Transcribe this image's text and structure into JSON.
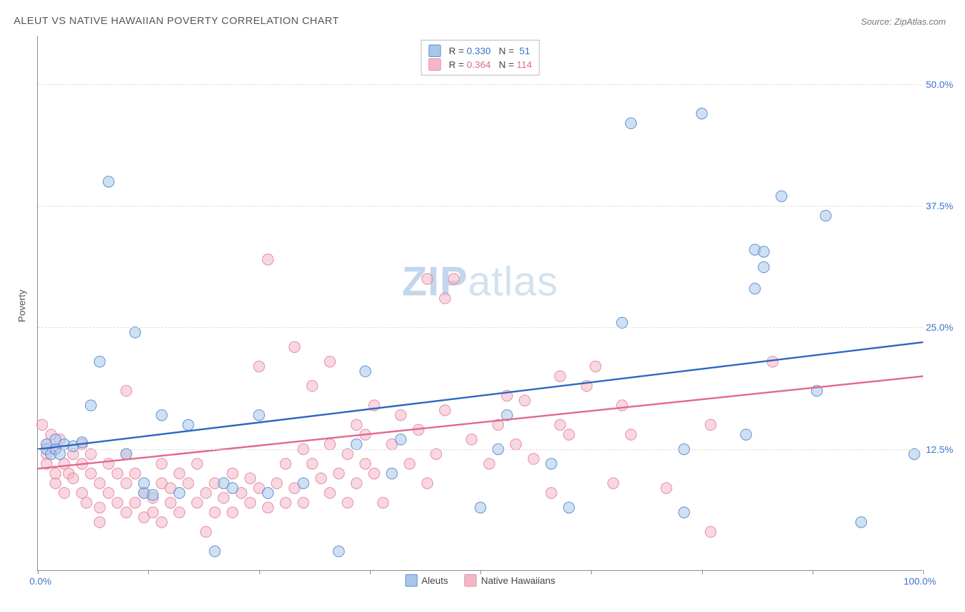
{
  "title": "ALEUT VS NATIVE HAWAIIAN POVERTY CORRELATION CHART",
  "source": "Source: ZipAtlas.com",
  "ylabel": "Poverty",
  "watermark_html": "ZIPatlas",
  "chart": {
    "type": "scatter",
    "xlim": [
      0,
      100
    ],
    "ylim": [
      0,
      55
    ],
    "y_ticks": [
      12.5,
      25.0,
      37.5,
      50.0
    ],
    "y_tick_labels": [
      "12.5%",
      "25.0%",
      "37.5%",
      "50.0%"
    ],
    "x_ticks": [
      0,
      12.5,
      25,
      37.5,
      50,
      62.5,
      75,
      87.5,
      100
    ],
    "x_min_label": "0.0%",
    "x_max_label": "100.0%",
    "background_color": "#ffffff",
    "grid_color": "#dddddd",
    "axis_color": "#888888",
    "tick_label_color": "#3a72c8",
    "marker_radius": 8,
    "marker_opacity": 0.55,
    "line_width": 2.5,
    "series": [
      {
        "name": "Aleuts",
        "fill_color": "#a9c6ea",
        "stroke_color": "#5a8fd4",
        "line_color": "#2f67c4",
        "stat_value_color": "#3a72c8",
        "r": "0.330",
        "n": "51",
        "trend": {
          "x0": 0,
          "y0": 12.5,
          "x1": 100,
          "y1": 23.5
        },
        "points": [
          [
            1,
            12.5
          ],
          [
            1,
            13
          ],
          [
            1.5,
            12
          ],
          [
            2,
            12.5
          ],
          [
            2,
            13.5
          ],
          [
            2.5,
            12
          ],
          [
            3,
            13
          ],
          [
            4,
            12.8
          ],
          [
            5,
            13.2
          ],
          [
            6,
            17
          ],
          [
            7,
            21.5
          ],
          [
            8,
            40
          ],
          [
            10,
            12
          ],
          [
            11,
            24.5
          ],
          [
            12,
            8
          ],
          [
            12,
            9
          ],
          [
            13,
            7.8
          ],
          [
            14,
            16
          ],
          [
            16,
            8
          ],
          [
            17,
            15
          ],
          [
            20,
            2
          ],
          [
            21,
            9
          ],
          [
            22,
            8.5
          ],
          [
            25,
            16
          ],
          [
            26,
            8
          ],
          [
            30,
            9
          ],
          [
            34,
            2
          ],
          [
            36,
            13
          ],
          [
            37,
            20.5
          ],
          [
            40,
            10
          ],
          [
            41,
            13.5
          ],
          [
            50,
            6.5
          ],
          [
            52,
            12.5
          ],
          [
            53,
            16
          ],
          [
            58,
            11
          ],
          [
            60,
            6.5
          ],
          [
            66,
            25.5
          ],
          [
            67,
            46
          ],
          [
            73,
            6
          ],
          [
            73,
            12.5
          ],
          [
            75,
            47
          ],
          [
            80,
            14
          ],
          [
            81,
            29
          ],
          [
            81,
            33
          ],
          [
            82,
            31.2
          ],
          [
            82,
            32.8
          ],
          [
            84,
            38.5
          ],
          [
            88,
            18.5
          ],
          [
            89,
            36.5
          ],
          [
            93,
            5
          ],
          [
            99,
            12
          ]
        ]
      },
      {
        "name": "Native Hawaiians",
        "fill_color": "#f3b7c8",
        "stroke_color": "#e48ba4",
        "line_color": "#e26a8c",
        "stat_value_color": "#e26a8c",
        "r": "0.364",
        "n": "114",
        "trend": {
          "x0": 0,
          "y0": 10.5,
          "x1": 100,
          "y1": 20
        },
        "points": [
          [
            0.5,
            15
          ],
          [
            1,
            12
          ],
          [
            1,
            13
          ],
          [
            1,
            11
          ],
          [
            1.5,
            14
          ],
          [
            2,
            9
          ],
          [
            2,
            10
          ],
          [
            2,
            12.5
          ],
          [
            2.5,
            13.5
          ],
          [
            3,
            8
          ],
          [
            3,
            11
          ],
          [
            3.5,
            10
          ],
          [
            4,
            9.5
          ],
          [
            4,
            12
          ],
          [
            5,
            8
          ],
          [
            5,
            11
          ],
          [
            5,
            13
          ],
          [
            5.5,
            7
          ],
          [
            6,
            10
          ],
          [
            6,
            12
          ],
          [
            7,
            5
          ],
          [
            7,
            6.5
          ],
          [
            7,
            9
          ],
          [
            8,
            8
          ],
          [
            8,
            11
          ],
          [
            9,
            7
          ],
          [
            9,
            10
          ],
          [
            10,
            6
          ],
          [
            10,
            9
          ],
          [
            10,
            12
          ],
          [
            10,
            18.5
          ],
          [
            11,
            7
          ],
          [
            11,
            10
          ],
          [
            12,
            5.5
          ],
          [
            12,
            8
          ],
          [
            13,
            6
          ],
          [
            13,
            7.5
          ],
          [
            14,
            5
          ],
          [
            14,
            9
          ],
          [
            14,
            11
          ],
          [
            15,
            7
          ],
          [
            15,
            8.5
          ],
          [
            16,
            6
          ],
          [
            16,
            10
          ],
          [
            17,
            9
          ],
          [
            18,
            7
          ],
          [
            18,
            11
          ],
          [
            19,
            4
          ],
          [
            19,
            8
          ],
          [
            20,
            6
          ],
          [
            20,
            9
          ],
          [
            21,
            7.5
          ],
          [
            22,
            6
          ],
          [
            22,
            10
          ],
          [
            23,
            8
          ],
          [
            24,
            7
          ],
          [
            24,
            9.5
          ],
          [
            25,
            8.5
          ],
          [
            25,
            21
          ],
          [
            26,
            6.5
          ],
          [
            26,
            32
          ],
          [
            27,
            9
          ],
          [
            28,
            7
          ],
          [
            28,
            11
          ],
          [
            29,
            8.5
          ],
          [
            29,
            23
          ],
          [
            30,
            7
          ],
          [
            30,
            12.5
          ],
          [
            31,
            11
          ],
          [
            31,
            19
          ],
          [
            32,
            9.5
          ],
          [
            33,
            8
          ],
          [
            33,
            13
          ],
          [
            33,
            21.5
          ],
          [
            34,
            10
          ],
          [
            35,
            7
          ],
          [
            35,
            12
          ],
          [
            36,
            9
          ],
          [
            36,
            15
          ],
          [
            37,
            11
          ],
          [
            37,
            14
          ],
          [
            38,
            10
          ],
          [
            38,
            17
          ],
          [
            39,
            7
          ],
          [
            40,
            13
          ],
          [
            41,
            16
          ],
          [
            42,
            11
          ],
          [
            43,
            14.5
          ],
          [
            44,
            9
          ],
          [
            44,
            30
          ],
          [
            45,
            12
          ],
          [
            46,
            16.5
          ],
          [
            46,
            28
          ],
          [
            47,
            30
          ],
          [
            49,
            13.5
          ],
          [
            51,
            11
          ],
          [
            52,
            15
          ],
          [
            53,
            18
          ],
          [
            54,
            13
          ],
          [
            55,
            17.5
          ],
          [
            56,
            11.5
          ],
          [
            58,
            8
          ],
          [
            59,
            15
          ],
          [
            59,
            20
          ],
          [
            60,
            14
          ],
          [
            62,
            19
          ],
          [
            63,
            21
          ],
          [
            65,
            9
          ],
          [
            66,
            17
          ],
          [
            67,
            14
          ],
          [
            71,
            8.5
          ],
          [
            76,
            4
          ],
          [
            76,
            15
          ],
          [
            83,
            21.5
          ]
        ]
      }
    ]
  },
  "legend": {
    "r_prefix": "R = ",
    "n_prefix": "N = "
  }
}
